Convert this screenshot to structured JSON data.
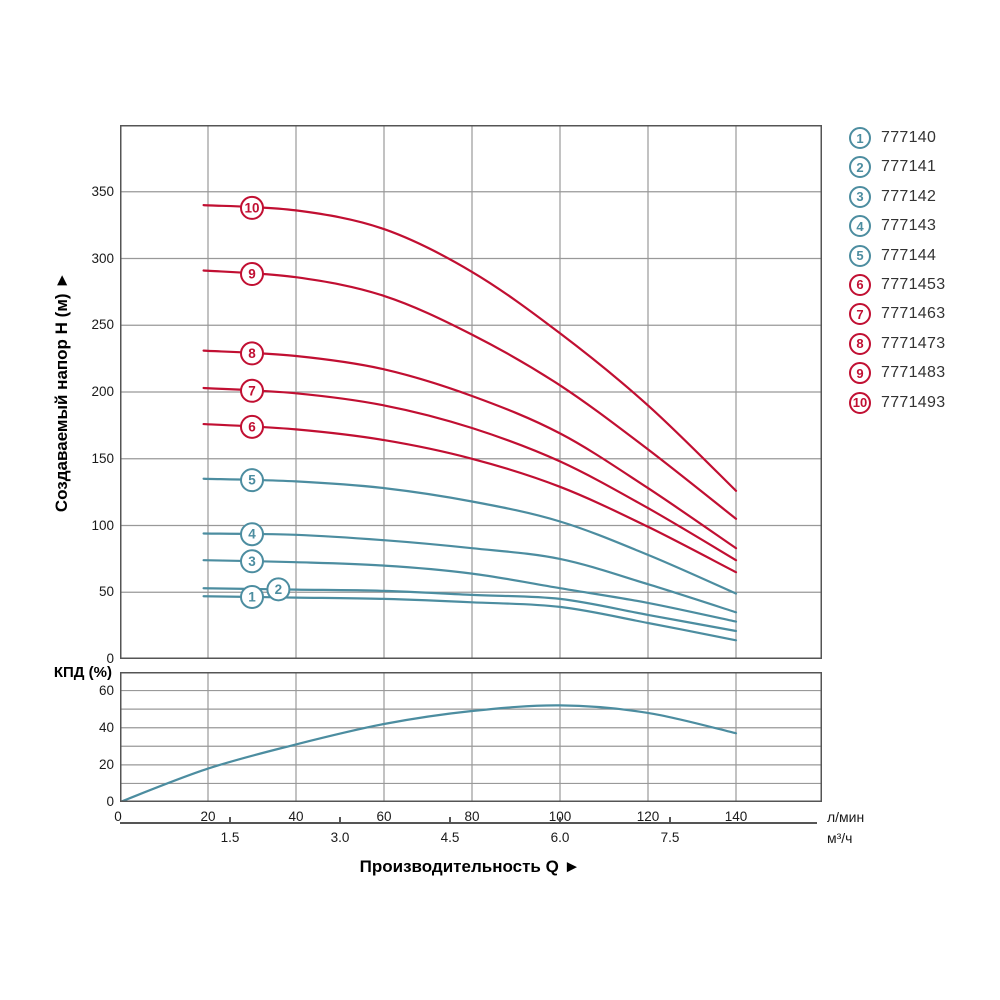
{
  "colors": {
    "teal": "#4c8da0",
    "red": "#c10f32",
    "grid": "#999999",
    "border": "#555555",
    "tick_text": "#1a1a1a",
    "legend_text": "#333333"
  },
  "axes": {
    "y_main": {
      "title": "Создаваемый напор H (м) ►",
      "ticks": [
        0,
        50,
        100,
        150,
        200,
        250,
        300,
        350
      ],
      "max": 400
    },
    "y_eff": {
      "label": "КПД (%)",
      "ticks": [
        0,
        20,
        40,
        60
      ],
      "max": 70
    },
    "x": {
      "title": "Производительность Q ►",
      "unit_lmin": "л/мин",
      "unit_m3h": "м³/ч",
      "ticks_lmin": [
        0,
        20,
        40,
        60,
        80,
        100,
        120,
        140
      ],
      "ticks_m3h": [
        {
          "label": "1.5",
          "q": 25
        },
        {
          "label": "3.0",
          "q": 50
        },
        {
          "label": "4.5",
          "q": 75
        },
        {
          "label": "6.0",
          "q": 100
        },
        {
          "label": "7.5",
          "q": 125
        }
      ]
    }
  },
  "legend": {
    "items": [
      {
        "num": "1",
        "code": "777140",
        "color": "#4c8da0"
      },
      {
        "num": "2",
        "code": "777141",
        "color": "#4c8da0"
      },
      {
        "num": "3",
        "code": "777142",
        "color": "#4c8da0"
      },
      {
        "num": "4",
        "code": "777143",
        "color": "#4c8da0"
      },
      {
        "num": "5",
        "code": "777144",
        "color": "#4c8da0"
      },
      {
        "num": "6",
        "code": "7771453",
        "color": "#c10f32"
      },
      {
        "num": "7",
        "code": "7771463",
        "color": "#c10f32"
      },
      {
        "num": "8",
        "code": "7771473",
        "color": "#c10f32"
      },
      {
        "num": "9",
        "code": "7771483",
        "color": "#c10f32"
      },
      {
        "num": "10",
        "code": "7771493",
        "color": "#c10f32"
      }
    ]
  },
  "chart_data": [
    {
      "type": "line",
      "title": "Напор H от подачи Q (семейство кривых насосов)",
      "xlabel": "Производительность Q",
      "ylabel": "Создаваемый напор H (м)",
      "x_units": [
        "л/мин",
        "м³/ч"
      ],
      "xlim": [
        0,
        159
      ],
      "ylim": [
        0,
        400
      ],
      "x_gridlines": [
        20,
        40,
        60,
        80,
        100,
        120,
        140
      ],
      "y_gridlines": [
        50,
        100,
        150,
        200,
        250,
        300,
        350
      ],
      "legend_position": "right",
      "series": [
        {
          "name": "1",
          "code": "777140",
          "color": "#4c8da0",
          "label_q": 30,
          "points": [
            [
              19,
              47
            ],
            [
              40,
              46
            ],
            [
              60,
              45
            ],
            [
              80,
              42.5
            ],
            [
              100,
              39
            ],
            [
              120,
              27
            ],
            [
              140,
              14
            ]
          ]
        },
        {
          "name": "2",
          "code": "777141",
          "color": "#4c8da0",
          "label_q": 36,
          "points": [
            [
              19,
              53
            ],
            [
              40,
              52
            ],
            [
              60,
              51
            ],
            [
              80,
              48
            ],
            [
              100,
              45
            ],
            [
              120,
              33
            ],
            [
              140,
              21
            ]
          ]
        },
        {
          "name": "3",
          "code": "777142",
          "color": "#4c8da0",
          "label_q": 30,
          "points": [
            [
              19,
              74
            ],
            [
              40,
              72.5
            ],
            [
              60,
              70
            ],
            [
              80,
              64
            ],
            [
              100,
              53
            ],
            [
              120,
              42
            ],
            [
              140,
              28
            ]
          ]
        },
        {
          "name": "4",
          "code": "777143",
          "color": "#4c8da0",
          "label_q": 30,
          "points": [
            [
              19,
              94
            ],
            [
              40,
              93
            ],
            [
              60,
              89
            ],
            [
              80,
              83
            ],
            [
              100,
              75
            ],
            [
              120,
              56
            ],
            [
              140,
              35
            ]
          ]
        },
        {
          "name": "5",
          "code": "777144",
          "color": "#4c8da0",
          "label_q": 30,
          "points": [
            [
              19,
              135
            ],
            [
              40,
              133
            ],
            [
              60,
              128
            ],
            [
              80,
              118
            ],
            [
              100,
              103
            ],
            [
              120,
              78
            ],
            [
              140,
              49
            ]
          ]
        },
        {
          "name": "6",
          "code": "7771453",
          "color": "#c10f32",
          "label_q": 30,
          "points": [
            [
              19,
              176
            ],
            [
              40,
              172
            ],
            [
              60,
              164
            ],
            [
              80,
              150
            ],
            [
              100,
              129
            ],
            [
              120,
              99
            ],
            [
              140,
              65
            ]
          ]
        },
        {
          "name": "7",
          "code": "7771463",
          "color": "#c10f32",
          "label_q": 30,
          "points": [
            [
              19,
              203
            ],
            [
              40,
              199
            ],
            [
              60,
              190
            ],
            [
              80,
              173
            ],
            [
              100,
              148
            ],
            [
              120,
              113
            ],
            [
              140,
              74
            ]
          ]
        },
        {
          "name": "8",
          "code": "7771473",
          "color": "#c10f32",
          "label_q": 30,
          "points": [
            [
              19,
              231
            ],
            [
              40,
              227
            ],
            [
              60,
              217
            ],
            [
              80,
              197
            ],
            [
              100,
              169
            ],
            [
              120,
              128
            ],
            [
              140,
              83
            ]
          ]
        },
        {
          "name": "9",
          "code": "7771483",
          "color": "#c10f32",
          "label_q": 30,
          "points": [
            [
              19,
              291
            ],
            [
              40,
              286
            ],
            [
              60,
              272
            ],
            [
              80,
              243
            ],
            [
              100,
              205
            ],
            [
              120,
              157
            ],
            [
              140,
              105
            ]
          ]
        },
        {
          "name": "10",
          "code": "7771493",
          "color": "#c10f32",
          "label_q": 30,
          "points": [
            [
              19,
              340
            ],
            [
              40,
              336
            ],
            [
              60,
              322
            ],
            [
              80,
              290
            ],
            [
              100,
              244
            ],
            [
              120,
              190
            ],
            [
              140,
              126
            ]
          ]
        }
      ]
    },
    {
      "type": "line",
      "title": "КПД от подачи Q",
      "ylabel": "КПД (%)",
      "xlim": [
        0,
        159
      ],
      "ylim": [
        0,
        70
      ],
      "x_gridlines": [
        20,
        40,
        60,
        80,
        100,
        120,
        140
      ],
      "y_gridlines": [
        10,
        20,
        30,
        40,
        50,
        60
      ],
      "series": [
        {
          "name": "КПД",
          "color": "#4c8da0",
          "points": [
            [
              0,
              0
            ],
            [
              20,
              18
            ],
            [
              40,
              31
            ],
            [
              60,
              42
            ],
            [
              80,
              49
            ],
            [
              100,
              52
            ],
            [
              120,
              48
            ],
            [
              140,
              37
            ]
          ]
        }
      ]
    }
  ]
}
